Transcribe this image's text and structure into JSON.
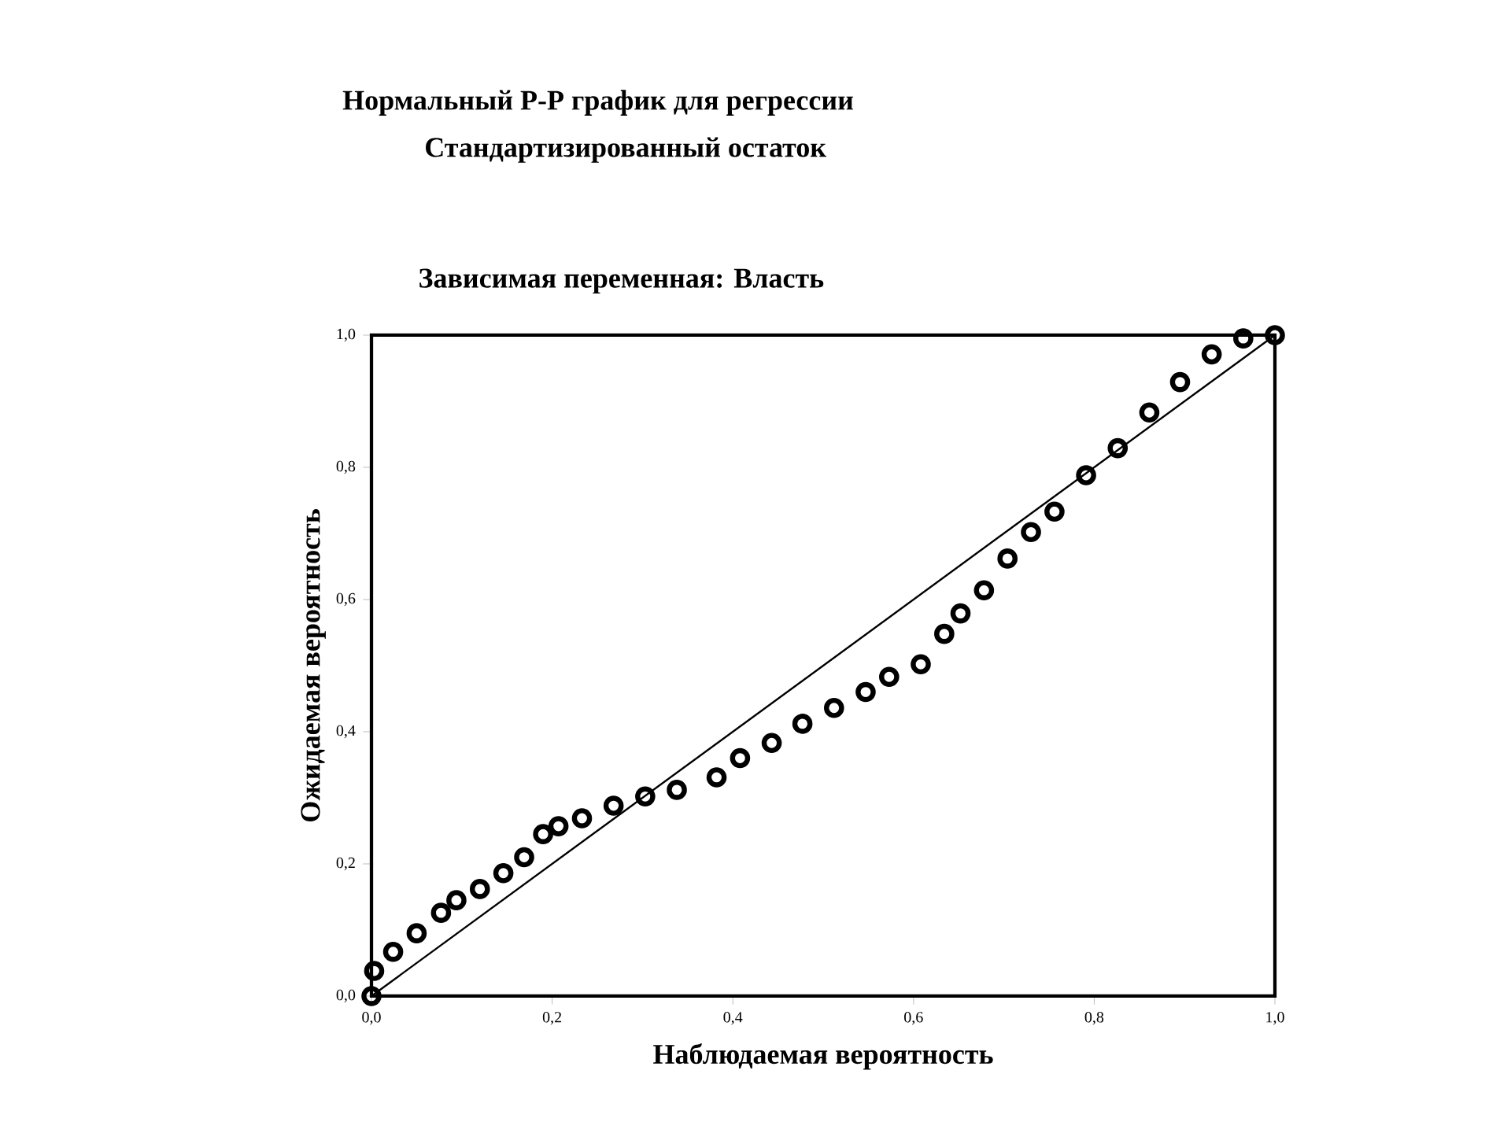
{
  "chart_data": {
    "type": "scatter",
    "title": "Нормальный P-P график для регрессии",
    "subtitle": "Стандартизированный остаток",
    "annotations": [
      "Зависимая переменная: Власть"
    ],
    "xlabel": "Наблюдаемая вероятность",
    "ylabel": "Ожидаемая вероятность",
    "xlim": [
      0,
      1
    ],
    "ylim": [
      0,
      1
    ],
    "xticks": [
      {
        "value": 0,
        "label": "0,0"
      },
      {
        "value": 0.2,
        "label": "0,2"
      },
      {
        "value": 0.4,
        "label": "0,4"
      },
      {
        "value": 0.6,
        "label": "0,6"
      },
      {
        "value": 0.8,
        "label": "0,8"
      },
      {
        "value": 1,
        "label": "1,0"
      }
    ],
    "yticks": [
      {
        "value": 0,
        "label": "0,0"
      },
      {
        "value": 0.2,
        "label": "0,2"
      },
      {
        "value": 0.4,
        "label": "0,4"
      },
      {
        "value": 0.6,
        "label": "0,6"
      },
      {
        "value": 0.8,
        "label": "0,8"
      },
      {
        "value": 1,
        "label": "1,0"
      }
    ],
    "grid": false,
    "series": [
      {
        "marker": "circle",
        "color": "#000000",
        "x": [
          0,
          0.003,
          0.024,
          0.05,
          0.077,
          0.094,
          0.12,
          0.146,
          0.169,
          0.19,
          0.207,
          0.233,
          0.268,
          0.303,
          0.338,
          0.382,
          0.408,
          0.443,
          0.477,
          0.512,
          0.547,
          0.573,
          0.608,
          0.634,
          0.652,
          0.678,
          0.704,
          0.73,
          0.756,
          0.791,
          0.826,
          0.861,
          0.895,
          0.93,
          0.965,
          1.0
        ],
        "values": [
          0,
          0.038,
          0.067,
          0.095,
          0.126,
          0.145,
          0.162,
          0.186,
          0.21,
          0.245,
          0.257,
          0.269,
          0.288,
          0.302,
          0.312,
          0.331,
          0.36,
          0.383,
          0.412,
          0.436,
          0.46,
          0.483,
          0.502,
          0.548,
          0.579,
          0.614,
          0.662,
          0.702,
          0.733,
          0.788,
          0.829,
          0.883,
          0.929,
          0.971,
          0.995,
          1.0
        ]
      },
      {
        "type": "line",
        "marker": "none",
        "color": "#000000",
        "x": [
          0,
          1
        ],
        "values": [
          0,
          1
        ]
      }
    ]
  }
}
